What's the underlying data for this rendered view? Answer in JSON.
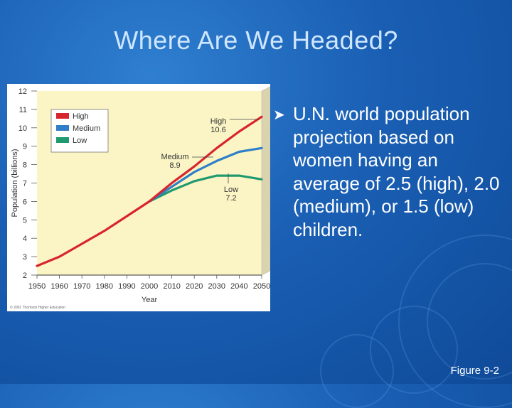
{
  "slide": {
    "title": "Where Are We Headed?",
    "bullet": "U.N. world population projection based on women having an average of 2.5 (high), 2.0 (medium), or 1.5 (low) children.",
    "figure_label": "Figure 9-2",
    "copyright": "© 2001 Thomson Higher Education"
  },
  "colors": {
    "high": "#d8242c",
    "medium": "#2f7fc8",
    "low": "#1f9a6e",
    "plot_bg": "#fbf5c6"
  },
  "chart_data": {
    "type": "line",
    "xlabel": "Year",
    "ylabel": "Population (billions)",
    "xlim": [
      1950,
      2050
    ],
    "ylim": [
      2,
      12
    ],
    "xticks": [
      1950,
      1960,
      1970,
      1980,
      1990,
      2000,
      2010,
      2020,
      2030,
      2040,
      2050
    ],
    "yticks": [
      2,
      3,
      4,
      5,
      6,
      7,
      8,
      9,
      10,
      11,
      12
    ],
    "legend_position": "top-left",
    "series": [
      {
        "name": "High",
        "x": [
          1950,
          1960,
          1970,
          1980,
          1990,
          2000,
          2010,
          2020,
          2030,
          2040,
          2050
        ],
        "values": [
          2.5,
          3.0,
          3.7,
          4.4,
          5.2,
          6.0,
          7.0,
          7.9,
          8.9,
          9.8,
          10.6
        ]
      },
      {
        "name": "Medium",
        "x": [
          2000,
          2010,
          2020,
          2030,
          2040,
          2050
        ],
        "values": [
          6.0,
          6.8,
          7.6,
          8.2,
          8.7,
          8.9
        ]
      },
      {
        "name": "Low",
        "x": [
          2000,
          2010,
          2020,
          2030,
          2040,
          2050
        ],
        "values": [
          6.0,
          6.6,
          7.1,
          7.4,
          7.4,
          7.2
        ]
      }
    ],
    "annotations": [
      {
        "series": "High",
        "label": "High",
        "value": "10.6"
      },
      {
        "series": "Medium",
        "label": "Medium",
        "value": "8.9"
      },
      {
        "series": "Low",
        "label": "Low",
        "value": "7.2"
      }
    ]
  }
}
